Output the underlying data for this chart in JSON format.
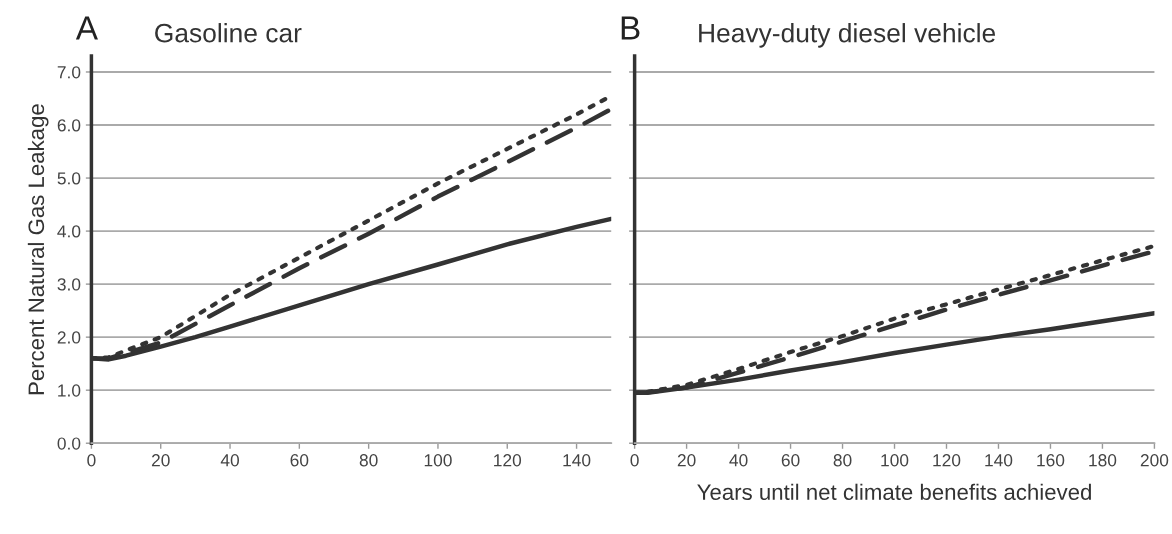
{
  "chart_data": [
    {
      "type": "line",
      "title": "Gasoline car",
      "ylabel": "Percent Natural Gas Leakage",
      "annotations": [
        "A"
      ],
      "xlim": [
        0,
        150
      ],
      "ylim": [
        0,
        7.3
      ],
      "xticks": [
        0,
        20,
        40,
        60,
        80,
        100,
        120,
        140
      ],
      "yticks": [
        {
          "value": 0,
          "label": "0.0"
        },
        {
          "value": 1,
          "label": "1.0"
        },
        {
          "value": 2,
          "label": "2.0"
        },
        {
          "value": 3,
          "label": "3.0"
        },
        {
          "value": 4,
          "label": "4.0"
        },
        {
          "value": 5,
          "label": "5.0"
        },
        {
          "value": 6,
          "label": "6.0"
        },
        {
          "value": 7,
          "label": "7.0"
        }
      ],
      "grid": "y",
      "legend": false,
      "series": [
        {
          "color": "#333333",
          "line_style": "solid",
          "x": [
            0,
            5,
            10,
            20,
            30,
            40,
            60,
            80,
            100,
            120,
            140,
            150
          ],
          "values": [
            1.6,
            1.58,
            1.65,
            1.82,
            2.0,
            2.2,
            2.6,
            3.0,
            3.37,
            3.75,
            4.08,
            4.23
          ]
        },
        {
          "color": "#333333",
          "line_style": "dashed",
          "x": [
            0,
            5,
            10,
            20,
            30,
            40,
            60,
            80,
            100,
            120,
            140,
            150
          ],
          "values": [
            1.6,
            1.6,
            1.7,
            1.9,
            2.25,
            2.6,
            3.3,
            3.95,
            4.65,
            5.3,
            5.95,
            6.3
          ]
        },
        {
          "color": "#333333",
          "line_style": "dotted",
          "x": [
            0,
            5,
            10,
            20,
            30,
            40,
            60,
            80,
            100,
            120,
            140,
            150
          ],
          "values": [
            1.6,
            1.62,
            1.75,
            2.0,
            2.4,
            2.8,
            3.5,
            4.2,
            4.9,
            5.55,
            6.2,
            6.55
          ]
        }
      ]
    },
    {
      "type": "line",
      "title": "Heavy-duty diesel vehicle",
      "xlabel": "Years until net climate benefits achieved",
      "annotations": [
        "B"
      ],
      "xlim": [
        0,
        200
      ],
      "ylim": [
        0,
        7.3
      ],
      "xticks": [
        0,
        20,
        40,
        60,
        80,
        100,
        120,
        140,
        160,
        180,
        200
      ],
      "yticks": [
        0,
        1,
        2,
        3,
        4,
        5,
        6,
        7
      ],
      "tick_labels": "x",
      "grid": "y",
      "legend": false,
      "series": [
        {
          "color": "#333333",
          "line_style": "solid",
          "x": [
            0,
            5,
            20,
            40,
            60,
            80,
            100,
            120,
            140,
            160,
            180,
            200
          ],
          "values": [
            0.95,
            0.95,
            1.05,
            1.2,
            1.37,
            1.53,
            1.7,
            1.86,
            2.01,
            2.15,
            2.3,
            2.45
          ]
        },
        {
          "color": "#333333",
          "line_style": "dashed",
          "x": [
            0,
            5,
            20,
            40,
            60,
            80,
            100,
            120,
            140,
            160,
            180,
            200
          ],
          "values": [
            0.95,
            0.96,
            1.05,
            1.33,
            1.62,
            1.92,
            2.22,
            2.52,
            2.8,
            3.07,
            3.35,
            3.62
          ]
        },
        {
          "color": "#333333",
          "line_style": "dotted",
          "x": [
            0,
            5,
            20,
            40,
            60,
            80,
            100,
            120,
            140,
            160,
            180,
            200
          ],
          "values": [
            0.95,
            0.97,
            1.1,
            1.4,
            1.72,
            2.02,
            2.35,
            2.62,
            2.9,
            3.17,
            3.45,
            3.72
          ]
        }
      ]
    }
  ]
}
